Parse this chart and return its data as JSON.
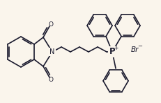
{
  "bg_color": "#faf5ec",
  "line_color": "#1a1a2e",
  "lw": 1.2,
  "figsize": [
    2.32,
    1.49
  ],
  "dpi": 100,
  "xlim": [
    0,
    232
  ],
  "ylim": [
    0,
    149
  ]
}
